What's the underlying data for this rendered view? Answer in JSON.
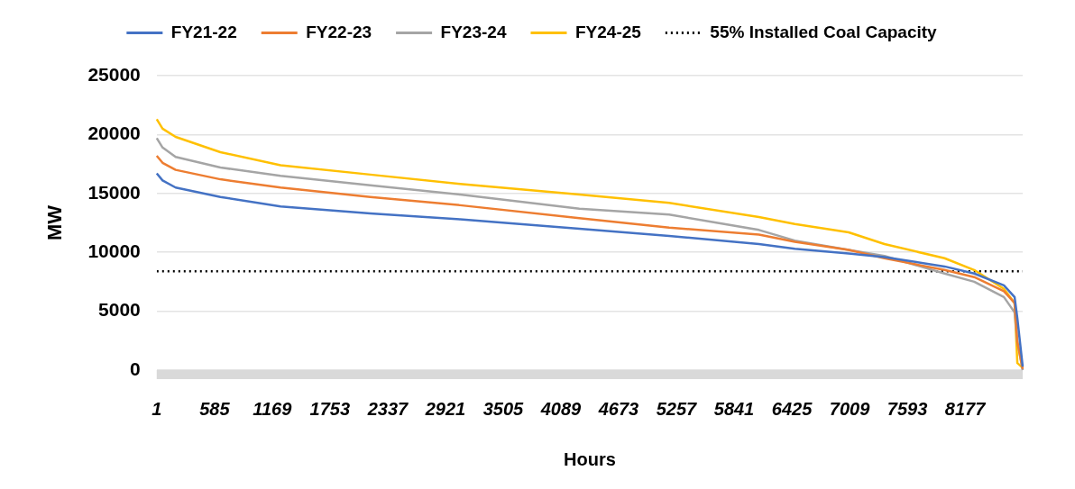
{
  "chart_data": {
    "type": "line",
    "xlabel": "Hours",
    "ylabel": "MW",
    "x": [
      1,
      60,
      192,
      645,
      1254,
      2161,
      3069,
      4276,
      5184,
      6092,
      6455,
      7000,
      7362,
      7970,
      8270,
      8570,
      8678,
      8706,
      8760
    ],
    "series": [
      {
        "name": "FY21-22",
        "color": "#4472c4",
        "values": [
          16700,
          16100,
          15500,
          14700,
          13900,
          13300,
          12800,
          12000,
          11400,
          10700,
          10300,
          9900,
          9600,
          8800,
          8200,
          7200,
          6200,
          4400,
          300
        ]
      },
      {
        "name": "FY22-23",
        "color": "#ed7d31",
        "values": [
          18200,
          17600,
          17000,
          16200,
          15500,
          14700,
          14000,
          12900,
          12100,
          11500,
          10900,
          10200,
          9500,
          8500,
          7900,
          6700,
          5700,
          2400,
          100
        ]
      },
      {
        "name": "FY23-24",
        "color": "#a5a5a5",
        "values": [
          19700,
          18900,
          18100,
          17200,
          16500,
          15700,
          14900,
          13700,
          13200,
          11900,
          11000,
          10200,
          9700,
          8200,
          7500,
          6200,
          4900,
          2400,
          0
        ]
      },
      {
        "name": "FY24-25",
        "color": "#ffc000",
        "values": [
          21300,
          20500,
          19800,
          18500,
          17400,
          16600,
          15800,
          14900,
          14200,
          13000,
          12400,
          11700,
          10700,
          9500,
          8500,
          6900,
          5700,
          600,
          200
        ]
      }
    ],
    "ref_lines": [
      {
        "axis": "y",
        "value": 8400,
        "label": "55% Installed Coal Capacity",
        "color": "#000000",
        "line_style": "dotted"
      }
    ],
    "xlim": [
      1,
      8760
    ],
    "xticks": [
      1,
      585,
      1169,
      1753,
      2337,
      2921,
      3505,
      4089,
      4673,
      5257,
      5841,
      6425,
      7009,
      7593,
      8177
    ],
    "ylim": [
      0,
      25000
    ],
    "yticks": [
      0,
      5000,
      10000,
      15000,
      20000,
      25000
    ],
    "grid": "y",
    "legend": "top",
    "marker": "none",
    "line_style": "solid"
  }
}
